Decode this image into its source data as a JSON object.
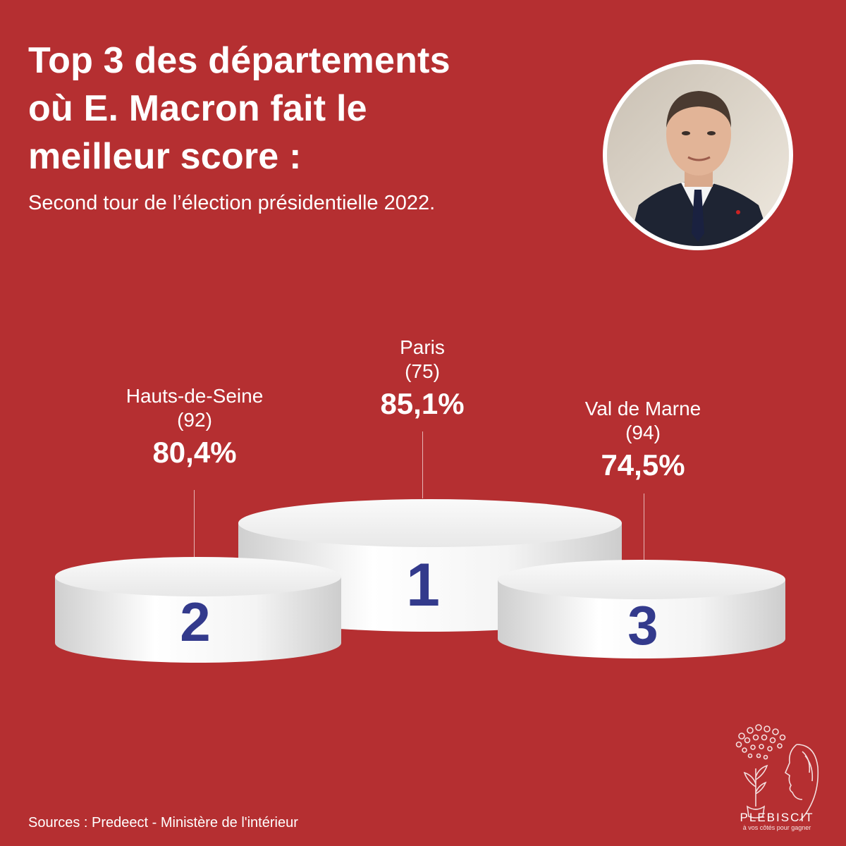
{
  "title_lines": [
    "Top 3 des départements",
    "où E. Macron fait le",
    "meilleur score :"
  ],
  "subtitle": "Second tour de l’élection présidentielle 2022.",
  "podium": [
    {
      "rank": "1",
      "name": "Paris",
      "dept": "(75)",
      "score": "85,1%",
      "score_value": 85.1
    },
    {
      "rank": "2",
      "name": "Hauts-de-Seine",
      "dept": "(92)",
      "score": "80,4%",
      "score_value": 80.4
    },
    {
      "rank": "3",
      "name": "Val de Marne",
      "dept": "(94)",
      "score": "74,5%",
      "score_value": 74.5
    }
  ],
  "sources": "Sources : Predeect - Ministère de l'intérieur",
  "logo": {
    "word": "PLEBISCIT",
    "tagline": "à vos côtés pour gagner"
  },
  "colors": {
    "background": "#b52f31",
    "rank_numbers": "#333a8c",
    "podium": "#f2f2f2"
  }
}
